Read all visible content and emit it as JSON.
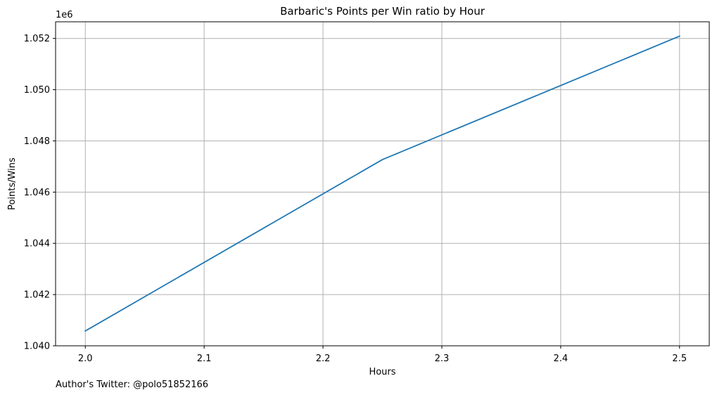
{
  "chart_data": {
    "type": "line",
    "title": "Barbaric's Points per Win ratio by Hour",
    "xlabel": "Hours",
    "ylabel": "Points/Wins",
    "y_offset_label": "1e6",
    "footer": "Author's Twitter: @polo51852166",
    "xlim": [
      1.975,
      2.525
    ],
    "ylim": [
      1.04,
      1.05265
    ],
    "x_ticks": [
      2.0,
      2.1,
      2.2,
      2.3,
      2.4,
      2.5
    ],
    "x_tick_labels": [
      "2.0",
      "2.1",
      "2.2",
      "2.3",
      "2.4",
      "2.5"
    ],
    "y_ticks": [
      1.04,
      1.042,
      1.044,
      1.046,
      1.048,
      1.05,
      1.052
    ],
    "y_tick_labels": [
      "1.040",
      "1.042",
      "1.044",
      "1.046",
      "1.048",
      "1.050",
      "1.052"
    ],
    "grid": true,
    "series": [
      {
        "color": "#1f77b4",
        "x": [
          2.0,
          2.25,
          2.5
        ],
        "y": [
          1.04058,
          1.04727,
          1.05209
        ]
      }
    ]
  }
}
